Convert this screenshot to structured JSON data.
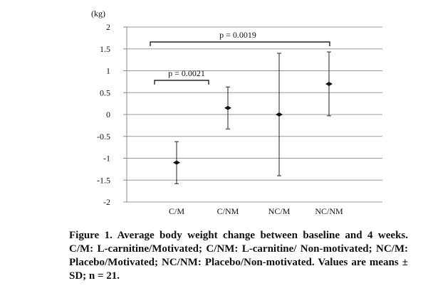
{
  "chart_data": {
    "type": "scatter",
    "y_unit": "(kg)",
    "ylim": [
      -2,
      2
    ],
    "yticks": [
      "2",
      "1.5",
      "1",
      "0.5",
      "0",
      "-0.5",
      "-1",
      "-1.5",
      "-2"
    ],
    "categories": [
      "C/M",
      "C/NM",
      "NC/M",
      "NC/NM"
    ],
    "means": [
      -1.1,
      0.15,
      0.0,
      0.7
    ],
    "sd": [
      0.48,
      0.48,
      1.4,
      0.73
    ],
    "grid": true,
    "comparisons": [
      {
        "label": "p = 0.0021",
        "from": "C/M",
        "to": "C/NM"
      },
      {
        "label": "p = 0.0019",
        "from": "C/M",
        "to": "NC/NM"
      }
    ]
  },
  "caption": "Figure 1. Average body weight change between baseline and 4 weeks. C/M: L-carnitine/Motivated; C/NM: L-carnitine/ Non-motivated; NC/M: Placebo/Motivated; NC/NM: Placebo/Non-motivated. Values are means ± SD; n = 21."
}
